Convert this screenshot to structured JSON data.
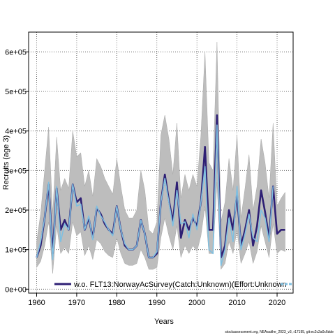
{
  "chart_data": {
    "type": "line",
    "xlabel": "Years",
    "ylabel": "Recruits (age 3)",
    "xlim": [
      1958,
      2024
    ],
    "ylim": [
      -10000,
      650000
    ],
    "x_ticks": [
      1960,
      1970,
      1980,
      1990,
      2000,
      2010,
      2020
    ],
    "y_ticks": [
      0,
      100000,
      200000,
      300000,
      400000,
      500000,
      600000
    ],
    "y_tick_labels": [
      "0e+00",
      "1e+05",
      "2e+05",
      "3e+05",
      "4e+05",
      "5e+05",
      "6e+05"
    ],
    "grid": true,
    "legend_position": "bottom",
    "legend": [
      {
        "label": "w.o. FLT13:NorwayAcSurvey(Catch:Unknown)(Effort:Unknown",
        "color": "#2e1f74"
      }
    ],
    "x": [
      1960,
      1961,
      1962,
      1963,
      1964,
      1965,
      1966,
      1967,
      1968,
      1969,
      1970,
      1971,
      1972,
      1973,
      1974,
      1975,
      1976,
      1977,
      1978,
      1979,
      1980,
      1981,
      1982,
      1983,
      1984,
      1985,
      1986,
      1987,
      1988,
      1989,
      1990,
      1991,
      1992,
      1993,
      1994,
      1995,
      1996,
      1997,
      1998,
      1999,
      2000,
      2001,
      2002,
      2003,
      2004,
      2005,
      2006,
      2007,
      2008,
      2009,
      2010,
      2011,
      2012,
      2013,
      2014,
      2015,
      2016,
      2017,
      2018,
      2019,
      2020,
      2021,
      2022
    ],
    "series": [
      {
        "name": "w.o. FLT13:NorwayAcSurvey(Catch:Unknown)(Effort:Unknown",
        "color": "#2e1f74",
        "values": [
          80000,
          110000,
          180000,
          265000,
          90000,
          255000,
          150000,
          175000,
          150000,
          265000,
          220000,
          230000,
          150000,
          180000,
          130000,
          205000,
          190000,
          165000,
          150000,
          140000,
          210000,
          150000,
          110000,
          100000,
          100000,
          110000,
          175000,
          140000,
          80000,
          80000,
          90000,
          220000,
          290000,
          225000,
          170000,
          270000,
          130000,
          175000,
          150000,
          180000,
          160000,
          220000,
          360000,
          150000,
          150000,
          440000,
          80000,
          110000,
          200000,
          150000,
          240000,
          110000,
          150000,
          200000,
          110000,
          160000,
          250000,
          195000,
          130000,
          260000,
          140000,
          150000,
          150000
        ]
      },
      {
        "name": "",
        "color": "#7fbfe0",
        "values": [
          80000,
          120000,
          180000,
          270000,
          75000,
          260000,
          120000,
          165000,
          150000,
          265000,
          210000,
          215000,
          150000,
          185000,
          125000,
          210000,
          185000,
          170000,
          150000,
          135000,
          210000,
          150000,
          115000,
          100000,
          100000,
          110000,
          175000,
          140000,
          80000,
          80000,
          95000,
          220000,
          280000,
          220000,
          160000,
          250000,
          165000,
          170000,
          130000,
          190000,
          150000,
          220000,
          310000,
          100000,
          90000,
          415000,
          60000,
          100000,
          180000,
          120000,
          260000,
          100000,
          140000,
          190000,
          130000,
          120000,
          200000,
          180000,
          120000,
          260000,
          null,
          null,
          null
        ]
      }
    ],
    "band": {
      "upper": [
        120000,
        190000,
        300000,
        410000,
        190000,
        385000,
        250000,
        280000,
        255000,
        400000,
        335000,
        345000,
        260000,
        300000,
        235000,
        330000,
        310000,
        280000,
        260000,
        240000,
        330000,
        260000,
        200000,
        180000,
        180000,
        200000,
        300000,
        250000,
        150000,
        140000,
        170000,
        390000,
        440000,
        380000,
        290000,
        420000,
        230000,
        290000,
        250000,
        290000,
        260000,
        390000,
        600000,
        320000,
        300000,
        625000,
        170000,
        220000,
        330000,
        250000,
        390000,
        180000,
        255000,
        340000,
        200000,
        260000,
        380000,
        320000,
        230000,
        420000,
        210000,
        230000,
        245000
      ],
      "lower": [
        55000,
        70000,
        110000,
        170000,
        40000,
        160000,
        90000,
        105000,
        90000,
        170000,
        135000,
        145000,
        85000,
        110000,
        75000,
        125000,
        115000,
        95000,
        85000,
        80000,
        130000,
        90000,
        65000,
        60000,
        60000,
        65000,
        100000,
        80000,
        50000,
        50000,
        55000,
        130000,
        180000,
        135000,
        100000,
        160000,
        80000,
        110000,
        90000,
        110000,
        95000,
        135000,
        210000,
        90000,
        90000,
        270000,
        50000,
        65000,
        120000,
        90000,
        150000,
        65000,
        90000,
        120000,
        65000,
        95000,
        160000,
        120000,
        80000,
        165000,
        90000,
        100000,
        95000
      ]
    }
  },
  "footer": "stockassessment.org, NEAsaithe_2023_v3, r17195, git:ec2c2a0c6dde"
}
